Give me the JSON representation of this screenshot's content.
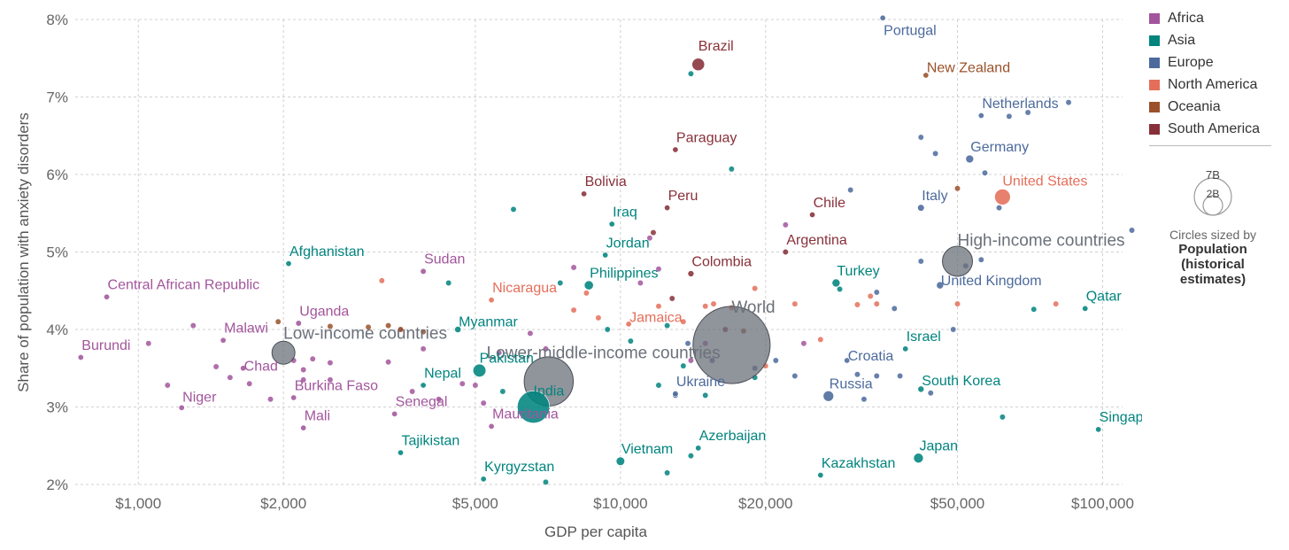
{
  "chart_data": {
    "type": "scatter",
    "title": "",
    "xlabel": "GDP per capita",
    "ylabel": "Share of population with anxiety disorders",
    "x_scale": "log",
    "xlim": [
      740,
      110000
    ],
    "ylim": [
      2,
      8
    ],
    "x_ticks": [
      {
        "v": 1000,
        "label": "$1,000"
      },
      {
        "v": 2000,
        "label": "$2,000"
      },
      {
        "v": 5000,
        "label": "$5,000"
      },
      {
        "v": 10000,
        "label": "$10,000"
      },
      {
        "v": 20000,
        "label": "$20,000"
      },
      {
        "v": 50000,
        "label": "$50,000"
      },
      {
        "v": 100000,
        "label": "$100,000"
      }
    ],
    "y_ticks": [
      {
        "v": 2,
        "label": "2%"
      },
      {
        "v": 3,
        "label": "3%"
      },
      {
        "v": 4,
        "label": "4%"
      },
      {
        "v": 5,
        "label": "5%"
      },
      {
        "v": 6,
        "label": "6%"
      },
      {
        "v": 7,
        "label": "7%"
      },
      {
        "v": 8,
        "label": "8%"
      }
    ],
    "legend": {
      "position": "right",
      "entries": [
        {
          "name": "Africa",
          "color": "#a2559c"
        },
        {
          "name": "Asia",
          "color": "#00847e"
        },
        {
          "name": "Europe",
          "color": "#4c6a9c"
        },
        {
          "name": "North America",
          "color": "#e56e5a"
        },
        {
          "name": "Oceania",
          "color": "#9a5129"
        },
        {
          "name": "South America",
          "color": "#883039"
        }
      ]
    },
    "size_legend": {
      "big": "7B",
      "small": "2B",
      "caption": "Circles sized by",
      "bold_lines": [
        "Population",
        "(historical",
        "estimates)"
      ]
    },
    "aggregates": [
      {
        "name": "World",
        "x": 17000,
        "y": 3.8,
        "pop": 7.9,
        "lx": 17000,
        "ly": 4.22,
        "anchor": "start",
        "dx": 0
      },
      {
        "name": "Lower-middle-income countries",
        "x": 7100,
        "y": 3.33,
        "pop": 3.2,
        "lx": 6800,
        "ly": 3.63,
        "anchor": "start",
        "dx": -60
      },
      {
        "name": "High-income countries",
        "x": 50000,
        "y": 4.88,
        "pop": 1.2,
        "lx": 50000,
        "ly": 5.08,
        "anchor": "start",
        "dx": 0
      },
      {
        "name": "Low-income countries",
        "x": 2000,
        "y": 3.7,
        "pop": 0.7,
        "lx": 2000,
        "ly": 3.88,
        "anchor": "start",
        "dx": 0
      }
    ],
    "labeled_points": [
      {
        "name": "Portugal",
        "region": "Europe",
        "x": 35000,
        "y": 8.02,
        "ly": 7.8,
        "pop": 0.01
      },
      {
        "name": "Brazil",
        "region": "South America",
        "x": 14500,
        "y": 7.42,
        "ly": 7.6,
        "pop": 0.21
      },
      {
        "name": "New Zealand",
        "region": "Oceania",
        "x": 43000,
        "y": 7.28,
        "ly": 7.32,
        "pop": 0.005
      },
      {
        "name": "Netherlands",
        "region": "Europe",
        "x": 56000,
        "y": 6.76,
        "ly": 6.86,
        "pop": 0.017
      },
      {
        "name": "Germany",
        "region": "Europe",
        "x": 53000,
        "y": 6.2,
        "ly": 6.3,
        "pop": 0.083
      },
      {
        "name": "Paraguay",
        "region": "South America",
        "x": 13000,
        "y": 6.32,
        "ly": 6.42,
        "pop": 0.007
      },
      {
        "name": "United States",
        "region": "North America",
        "x": 62000,
        "y": 5.71,
        "ly": 5.86,
        "pop": 0.33
      },
      {
        "name": "Bolivia",
        "region": "South America",
        "x": 8400,
        "y": 5.75,
        "ly": 5.85,
        "pop": 0.012
      },
      {
        "name": "Peru",
        "region": "South America",
        "x": 12500,
        "y": 5.57,
        "ly": 5.67,
        "pop": 0.033
      },
      {
        "name": "Iraq",
        "region": "Asia",
        "x": 9600,
        "y": 5.36,
        "ly": 5.46,
        "pop": 0.04
      },
      {
        "name": "Chile",
        "region": "South America",
        "x": 25000,
        "y": 5.48,
        "ly": 5.58,
        "pop": 0.019
      },
      {
        "name": "Italy",
        "region": "Europe",
        "x": 42000,
        "y": 5.57,
        "ly": 5.67,
        "pop": 0.06
      },
      {
        "name": "Jordan",
        "region": "Asia",
        "x": 9300,
        "y": 4.96,
        "ly": 5.06,
        "pop": 0.01
      },
      {
        "name": "Argentina",
        "region": "South America",
        "x": 22000,
        "y": 5.0,
        "ly": 5.1,
        "pop": 0.045
      },
      {
        "name": "Afghanistan",
        "region": "Asia",
        "x": 2050,
        "y": 4.85,
        "ly": 4.95,
        "pop": 0.039
      },
      {
        "name": "Sudan",
        "region": "Africa",
        "x": 3900,
        "y": 4.75,
        "ly": 4.85,
        "pop": 0.044
      },
      {
        "name": "Colombia",
        "region": "South America",
        "x": 14000,
        "y": 4.72,
        "ly": 4.82,
        "pop": 0.05
      },
      {
        "name": "Philippines",
        "region": "Asia",
        "x": 8600,
        "y": 4.57,
        "ly": 4.67,
        "pop": 0.11
      },
      {
        "name": "Turkey",
        "region": "Asia",
        "x": 28000,
        "y": 4.6,
        "ly": 4.7,
        "pop": 0.084
      },
      {
        "name": "United Kingdom",
        "region": "Europe",
        "x": 46000,
        "y": 4.57,
        "ly": 4.57,
        "pop": 0.067
      },
      {
        "name": "Nicaragua",
        "region": "North America",
        "x": 5400,
        "y": 4.38,
        "ly": 4.48,
        "pop": 0.006
      },
      {
        "name": "Qatar",
        "region": "Asia",
        "x": 92000,
        "y": 4.27,
        "ly": 4.37,
        "pop": 0.003
      },
      {
        "name": "Central African Republic",
        "region": "Africa",
        "x": 860,
        "y": 4.42,
        "ly": 4.52,
        "pop": 0.005
      },
      {
        "name": "Uganda",
        "region": "Africa",
        "x": 2150,
        "y": 4.08,
        "ly": 4.18,
        "pop": 0.045
      },
      {
        "name": "Jamaica",
        "region": "North America",
        "x": 10400,
        "y": 4.07,
        "ly": 4.1,
        "pop": 0.003
      },
      {
        "name": "Myanmar",
        "region": "Asia",
        "x": 4600,
        "y": 4.0,
        "ly": 4.04,
        "pop": 0.054
      },
      {
        "name": "Malawi",
        "region": "Africa",
        "x": 1500,
        "y": 3.86,
        "ly": 3.96,
        "pop": 0.019
      },
      {
        "name": "Israel",
        "region": "Asia",
        "x": 39000,
        "y": 3.75,
        "ly": 3.85,
        "pop": 0.009
      },
      {
        "name": "Burundi",
        "region": "Africa",
        "x": 760,
        "y": 3.64,
        "ly": 3.74,
        "pop": 0.012
      },
      {
        "name": "Croatia",
        "region": "Europe",
        "x": 29500,
        "y": 3.6,
        "ly": 3.6,
        "pop": 0.004
      },
      {
        "name": "Chad",
        "region": "Africa",
        "x": 1650,
        "y": 3.5,
        "ly": 3.47,
        "pop": 0.016
      },
      {
        "name": "Pakistan",
        "region": "Asia",
        "x": 5100,
        "y": 3.47,
        "ly": 3.57,
        "pop": 0.22
      },
      {
        "name": "Nepal",
        "region": "Asia",
        "x": 3900,
        "y": 3.28,
        "ly": 3.38,
        "pop": 0.029
      },
      {
        "name": "South Korea",
        "region": "Asia",
        "x": 42000,
        "y": 3.23,
        "ly": 3.28,
        "pop": 0.052
      },
      {
        "name": "Ukraine",
        "region": "Europe",
        "x": 13000,
        "y": 3.17,
        "ly": 3.27,
        "pop": 0.044
      },
      {
        "name": "Russia",
        "region": "Europe",
        "x": 27000,
        "y": 3.14,
        "ly": 3.24,
        "pop": 0.145
      },
      {
        "name": "India",
        "region": "Asia",
        "x": 6600,
        "y": 3.0,
        "ly": 3.15,
        "pop": 1.38
      },
      {
        "name": "Burkina Faso",
        "region": "Africa",
        "x": 2100,
        "y": 3.12,
        "ly": 3.22,
        "pop": 0.021
      },
      {
        "name": "Niger",
        "region": "Africa",
        "x": 1230,
        "y": 2.99,
        "ly": 3.07,
        "pop": 0.024
      },
      {
        "name": "Senegal",
        "region": "Africa",
        "x": 3400,
        "y": 2.91,
        "ly": 3.01,
        "pop": 0.017
      },
      {
        "name": "Mauritania",
        "region": "Africa",
        "x": 5400,
        "y": 2.75,
        "ly": 2.85,
        "pop": 0.005
      },
      {
        "name": "Mali",
        "region": "Africa",
        "x": 2200,
        "y": 2.73,
        "ly": 2.83,
        "pop": 0.02
      },
      {
        "name": "Singapore",
        "region": "Asia",
        "x": 98000,
        "y": 2.71,
        "ly": 2.81,
        "pop": 0.006
      },
      {
        "name": "Tajikistan",
        "region": "Asia",
        "x": 3500,
        "y": 2.41,
        "ly": 2.51,
        "pop": 0.01
      },
      {
        "name": "Azerbaijan",
        "region": "Asia",
        "x": 14500,
        "y": 2.47,
        "ly": 2.57,
        "pop": 0.01
      },
      {
        "name": "Japan",
        "region": "Asia",
        "x": 41500,
        "y": 2.34,
        "ly": 2.44,
        "pop": 0.126
      },
      {
        "name": "Vietnam",
        "region": "Asia",
        "x": 10000,
        "y": 2.3,
        "ly": 2.4,
        "pop": 0.097
      },
      {
        "name": "Kazakhstan",
        "region": "Asia",
        "x": 26000,
        "y": 2.12,
        "ly": 2.22,
        "pop": 0.019
      },
      {
        "name": "Kyrgyzstan",
        "region": "Asia",
        "x": 5200,
        "y": 2.07,
        "ly": 2.17,
        "pop": 0.007
      }
    ],
    "unlabeled_points": [
      [
        "Africa",
        1050,
        3.82
      ],
      [
        "Africa",
        1150,
        3.28
      ],
      [
        "Africa",
        1300,
        4.05
      ],
      [
        "Africa",
        1450,
        3.52
      ],
      [
        "Africa",
        1550,
        3.38
      ],
      [
        "Africa",
        1700,
        3.3
      ],
      [
        "Africa",
        1880,
        3.1
      ],
      [
        "Africa",
        2100,
        3.6
      ],
      [
        "Africa",
        2200,
        3.48
      ],
      [
        "Africa",
        2300,
        3.62
      ],
      [
        "Africa",
        2200,
        3.35
      ],
      [
        "Africa",
        2500,
        3.57
      ],
      [
        "Africa",
        2500,
        3.35
      ],
      [
        "Africa",
        3300,
        3.58
      ],
      [
        "Africa",
        3700,
        3.2
      ],
      [
        "Africa",
        3900,
        3.75
      ],
      [
        "Africa",
        4200,
        3.1
      ],
      [
        "Africa",
        4700,
        3.3
      ],
      [
        "Africa",
        5000,
        3.28
      ],
      [
        "Africa",
        5200,
        3.05
      ],
      [
        "Africa",
        5600,
        3.7
      ],
      [
        "Africa",
        6500,
        3.95
      ],
      [
        "Africa",
        7000,
        3.75
      ],
      [
        "Africa",
        8000,
        4.8
      ],
      [
        "Africa",
        11500,
        5.18
      ],
      [
        "Africa",
        12000,
        4.78
      ],
      [
        "Africa",
        11000,
        4.6
      ],
      [
        "Africa",
        15000,
        3.82
      ],
      [
        "Africa",
        22000,
        5.35
      ],
      [
        "Africa",
        24000,
        3.82
      ],
      [
        "Africa",
        14000,
        3.6
      ],
      [
        "Africa",
        3500,
        4.0
      ],
      [
        "Asia",
        6000,
        5.55
      ],
      [
        "Asia",
        4400,
        4.6
      ],
      [
        "Asia",
        7500,
        4.6
      ],
      [
        "Asia",
        9400,
        4.0
      ],
      [
        "Asia",
        12000,
        3.28
      ],
      [
        "Asia",
        12500,
        4.05
      ],
      [
        "Asia",
        14000,
        7.3
      ],
      [
        "Asia",
        17000,
        6.07
      ],
      [
        "Asia",
        19000,
        3.38
      ],
      [
        "Asia",
        28500,
        4.52
      ],
      [
        "Asia",
        72000,
        4.26
      ],
      [
        "Asia",
        62000,
        2.87
      ],
      [
        "Asia",
        14000,
        2.37
      ],
      [
        "Asia",
        12500,
        2.15
      ],
      [
        "Asia",
        7000,
        2.03
      ],
      [
        "Asia",
        13500,
        3.53
      ],
      [
        "Asia",
        10500,
        3.85
      ],
      [
        "Asia",
        15000,
        3.15
      ],
      [
        "Asia",
        5700,
        3.2
      ],
      [
        "Europe",
        13000,
        3.15
      ],
      [
        "Europe",
        13800,
        3.82
      ],
      [
        "Europe",
        30000,
        5.8
      ],
      [
        "Europe",
        42000,
        6.48
      ],
      [
        "Europe",
        45000,
        6.27
      ],
      [
        "Europe",
        64000,
        6.75
      ],
      [
        "Europe",
        70000,
        6.8
      ],
      [
        "Europe",
        85000,
        6.93
      ],
      [
        "Europe",
        57000,
        6.02
      ],
      [
        "Europe",
        61000,
        5.57
      ],
      [
        "Europe",
        42000,
        4.88
      ],
      [
        "Europe",
        52000,
        4.82
      ],
      [
        "Europe",
        56000,
        4.9
      ],
      [
        "Europe",
        34000,
        3.4
      ],
      [
        "Europe",
        38000,
        3.4
      ],
      [
        "Europe",
        32000,
        3.1
      ],
      [
        "Europe",
        34000,
        4.48
      ],
      [
        "Europe",
        49000,
        4.0
      ],
      [
        "Europe",
        37000,
        4.27
      ],
      [
        "Europe",
        31000,
        3.42
      ],
      [
        "Europe",
        44000,
        3.18
      ],
      [
        "Europe",
        23000,
        3.4
      ],
      [
        "Europe",
        19000,
        3.5
      ],
      [
        "Europe",
        15500,
        3.6
      ],
      [
        "Europe",
        21000,
        3.6
      ],
      [
        "Europe",
        115000,
        5.28
      ],
      [
        "North America",
        3200,
        4.63
      ],
      [
        "North America",
        8000,
        4.25
      ],
      [
        "North America",
        8500,
        4.47
      ],
      [
        "North America",
        9000,
        4.15
      ],
      [
        "North America",
        13500,
        4.1
      ],
      [
        "North America",
        15000,
        4.3
      ],
      [
        "North America",
        15600,
        4.33
      ],
      [
        "North America",
        17000,
        4.28
      ],
      [
        "North America",
        19000,
        4.53
      ],
      [
        "North America",
        23000,
        4.33
      ],
      [
        "North America",
        26000,
        3.87
      ],
      [
        "North America",
        31000,
        4.32
      ],
      [
        "North America",
        33000,
        4.43
      ],
      [
        "North America",
        34000,
        4.33
      ],
      [
        "North America",
        20000,
        3.53
      ],
      [
        "North America",
        50000,
        4.33
      ],
      [
        "North America",
        80000,
        4.33
      ],
      [
        "North America",
        12000,
        4.3
      ],
      [
        "Oceania",
        1950,
        4.1
      ],
      [
        "Oceania",
        2500,
        4.04
      ],
      [
        "Oceania",
        3000,
        4.03
      ],
      [
        "Oceania",
        3300,
        4.05
      ],
      [
        "Oceania",
        3500,
        4.0
      ],
      [
        "Oceania",
        3900,
        3.97
      ],
      [
        "Oceania",
        18000,
        3.98
      ],
      [
        "Oceania",
        50000,
        5.82
      ],
      [
        "South America",
        11700,
        5.25
      ],
      [
        "South America",
        12800,
        4.4
      ],
      [
        "South America",
        16500,
        4.0
      ]
    ]
  }
}
